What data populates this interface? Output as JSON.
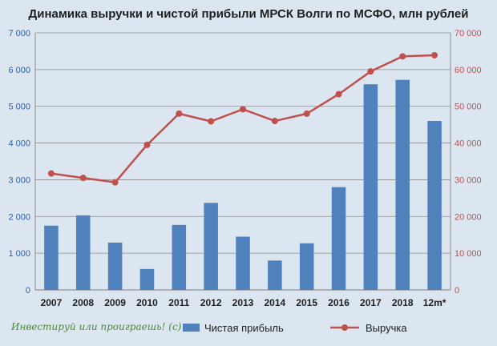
{
  "chart_data": {
    "type": "bar+line",
    "title": "Динамика выручки и чистой прибыли МРСК Волги по МСФО, млн рублей",
    "categories": [
      "2007",
      "2008",
      "2009",
      "2010",
      "2011",
      "2012",
      "2013",
      "2014",
      "2015",
      "2016",
      "2017",
      "2018",
      "12m*"
    ],
    "series": [
      {
        "name": "Чистая прибыль",
        "type": "bar",
        "axis": "left",
        "color": "#4f81bd",
        "values": [
          1750,
          2030,
          1290,
          570,
          1770,
          2370,
          1450,
          800,
          1270,
          2800,
          5600,
          5720,
          4600
        ]
      },
      {
        "name": "Выручка",
        "type": "line",
        "axis": "right",
        "color": "#c0504d",
        "values": [
          31700,
          30500,
          29300,
          39500,
          48000,
          45900,
          49200,
          46000,
          48000,
          53300,
          59500,
          63600,
          63900
        ]
      }
    ],
    "y_left": {
      "min": 0,
      "max": 7000,
      "step": 1000,
      "tick_labels": [
        "0",
        "1 000",
        "2 000",
        "3 000",
        "4 000",
        "5 000",
        "6 000",
        "7 000"
      ]
    },
    "y_right": {
      "min": 0,
      "max": 70000,
      "step": 10000,
      "tick_labels": [
        "0",
        "10 000",
        "20 000",
        "30 000",
        "40 000",
        "50 000",
        "60 000",
        "70 000"
      ]
    },
    "grid": true,
    "legend_position": "bottom"
  },
  "watermark": "Инвестируй или проиграешь! (c)"
}
